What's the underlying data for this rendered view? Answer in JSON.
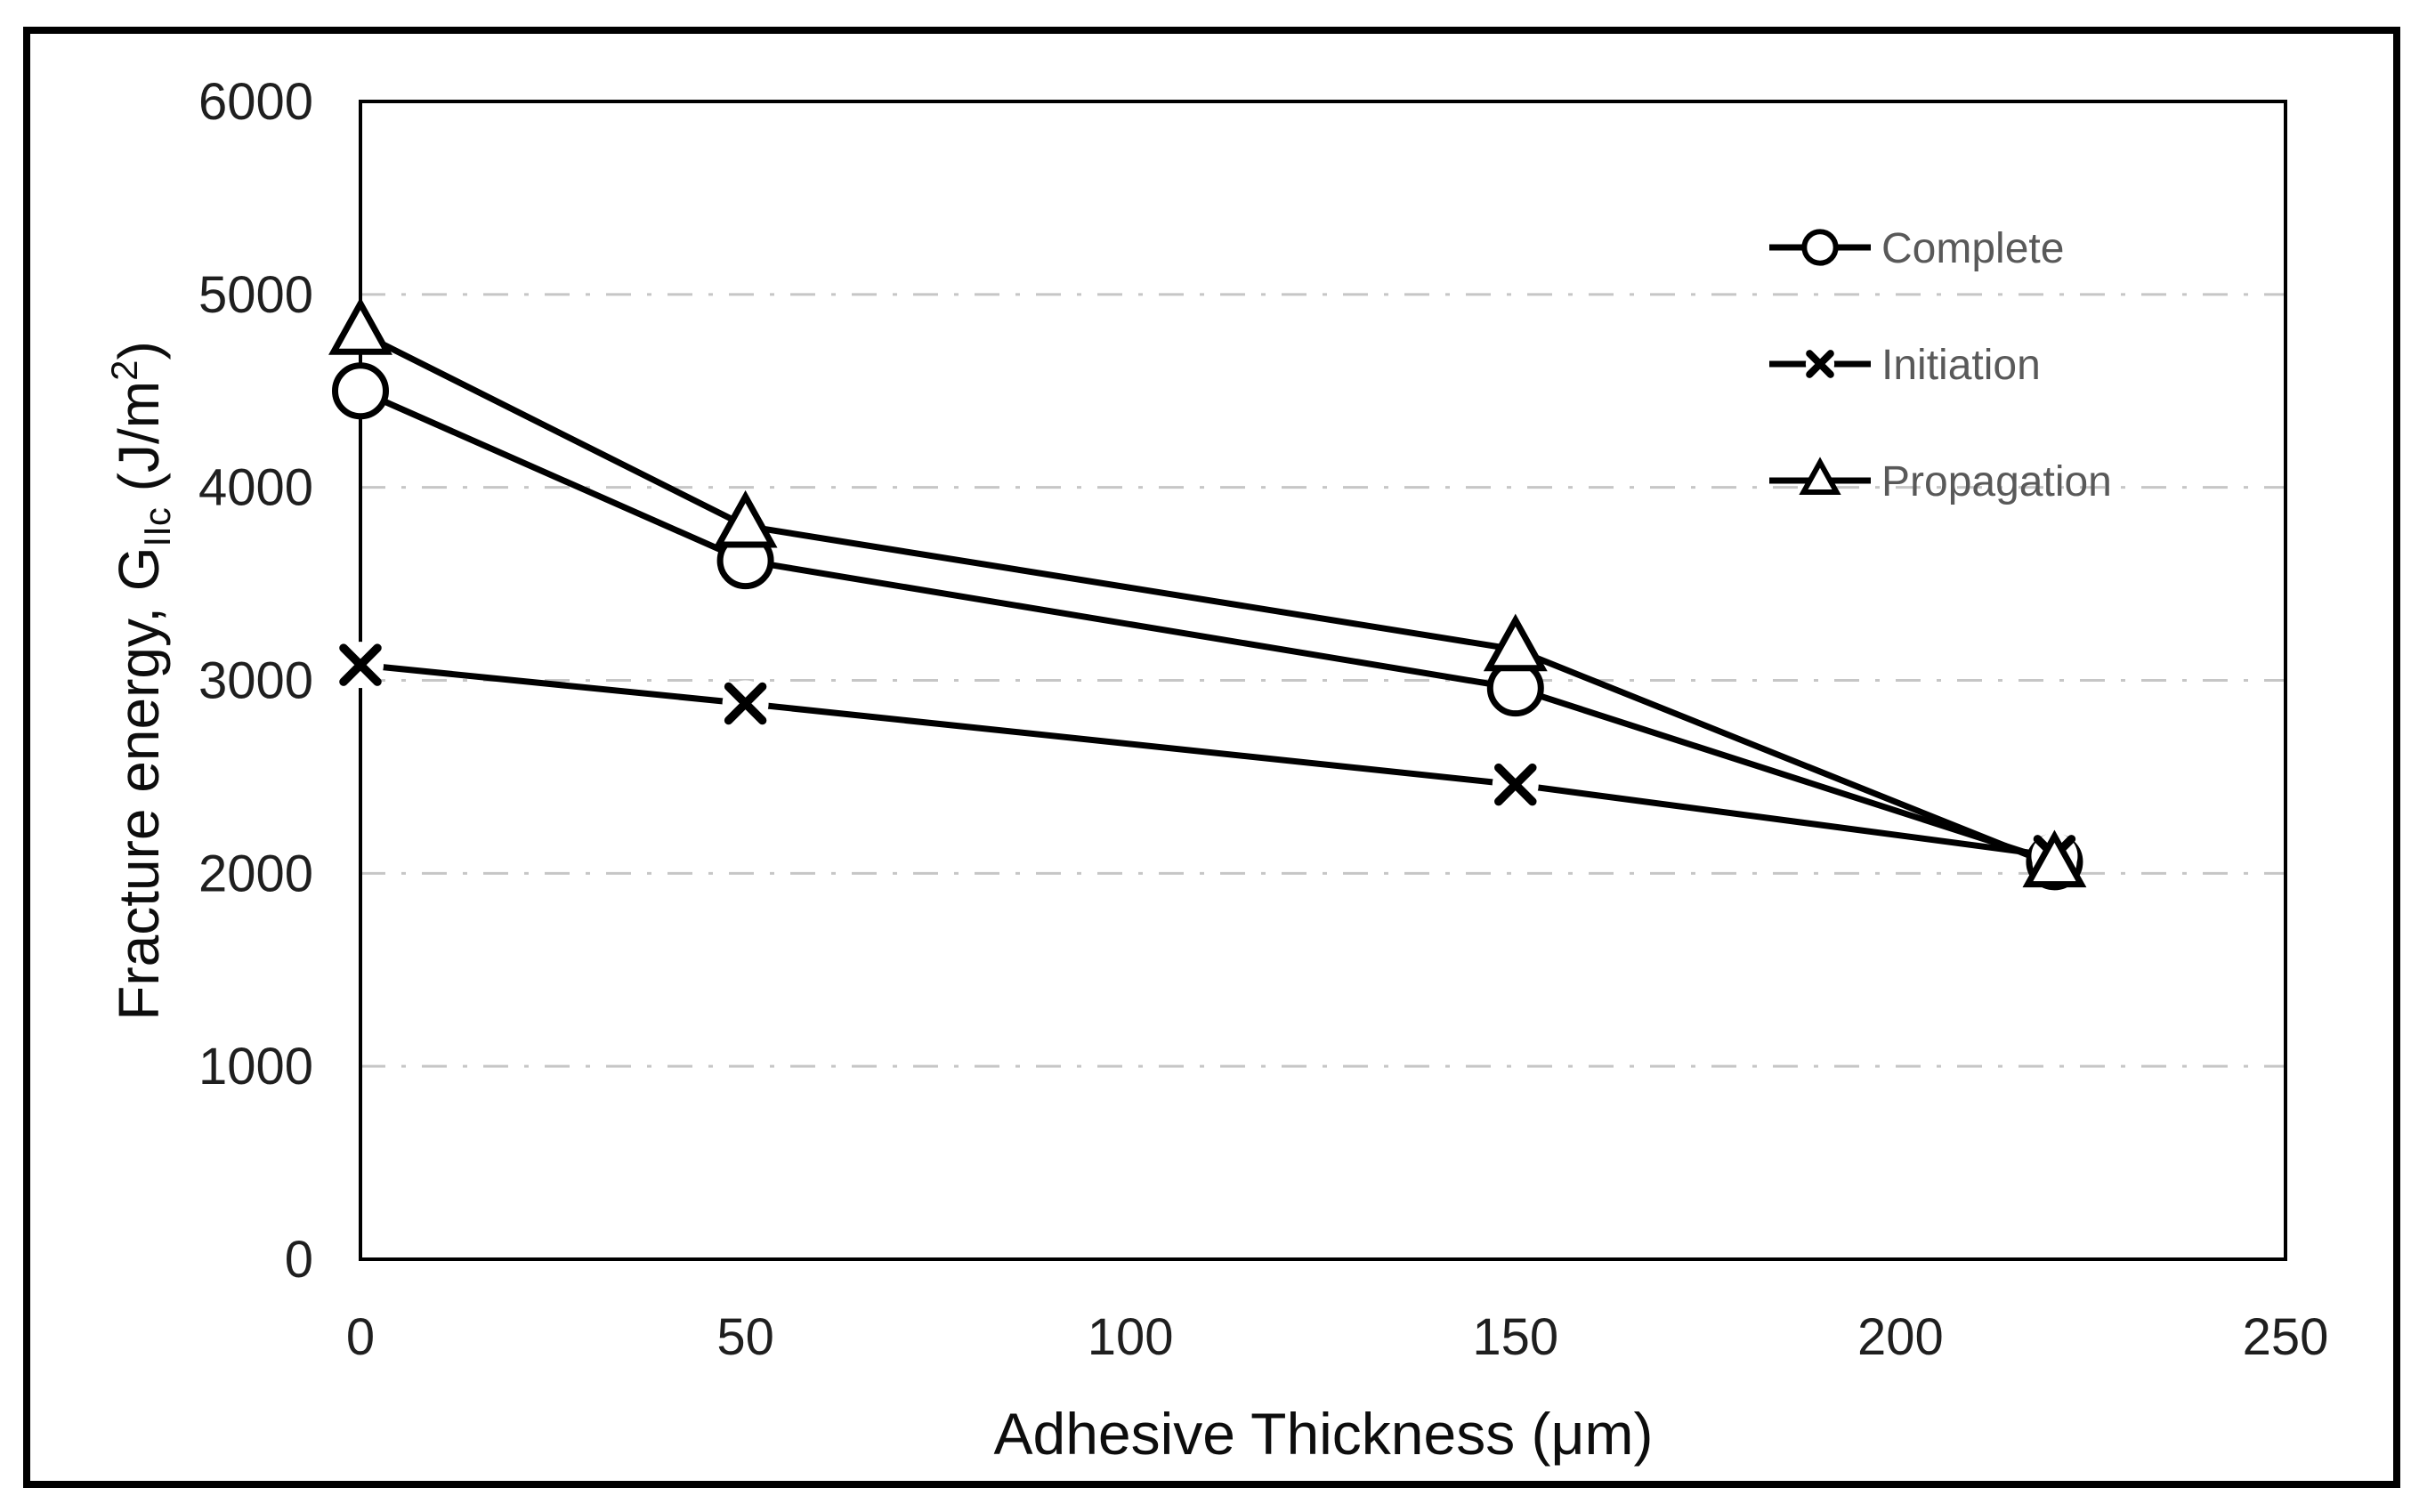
{
  "figure": {
    "background": "#ffffff",
    "outer_border_color": "#000000"
  },
  "chart_data": {
    "type": "line",
    "title": "",
    "xlabel": "Adhesive Thickness (μm)",
    "ylabel_text": "Fracture energy, GIIc (J/m2)",
    "ylabel_parts": {
      "prefix": "Fracture energy, G",
      "subscript": "IIc",
      "mid": " (J/m",
      "superscript": "2",
      "suffix": ")"
    },
    "xlim": [
      0,
      250
    ],
    "ylim": [
      0,
      6000
    ],
    "x_ticks": [
      0,
      50,
      100,
      150,
      200,
      250
    ],
    "y_ticks": [
      0,
      1000,
      2000,
      3000,
      4000,
      5000,
      6000
    ],
    "grid": {
      "horizontal": true,
      "style": "dash-dot",
      "color": "#c6c6c6"
    },
    "legend": {
      "position": "inside-top-right",
      "labels": [
        "Complete",
        "Initiation",
        "Propagation"
      ]
    },
    "x": [
      0,
      50,
      150,
      220
    ],
    "series": [
      {
        "name": "Complete",
        "marker": "circle",
        "color": "#000000",
        "values": [
          4500,
          3620,
          2960,
          2060
        ]
      },
      {
        "name": "Initiation",
        "marker": "x",
        "color": "#000000",
        "values": [
          3080,
          2880,
          2460,
          2090
        ]
      },
      {
        "name": "Propagation",
        "marker": "triangle",
        "color": "#000000",
        "values": [
          4800,
          3800,
          3160,
          2040
        ]
      }
    ],
    "colors": {
      "series_line": "#000000",
      "marker_stroke": "#000000",
      "marker_fill": "#ffffff",
      "tick_label": "#1f1f1f",
      "axis_title": "#0d0d0d",
      "legend_text": "#595959",
      "axis_line": "#000000",
      "gridline": "#c6c6c6"
    }
  }
}
